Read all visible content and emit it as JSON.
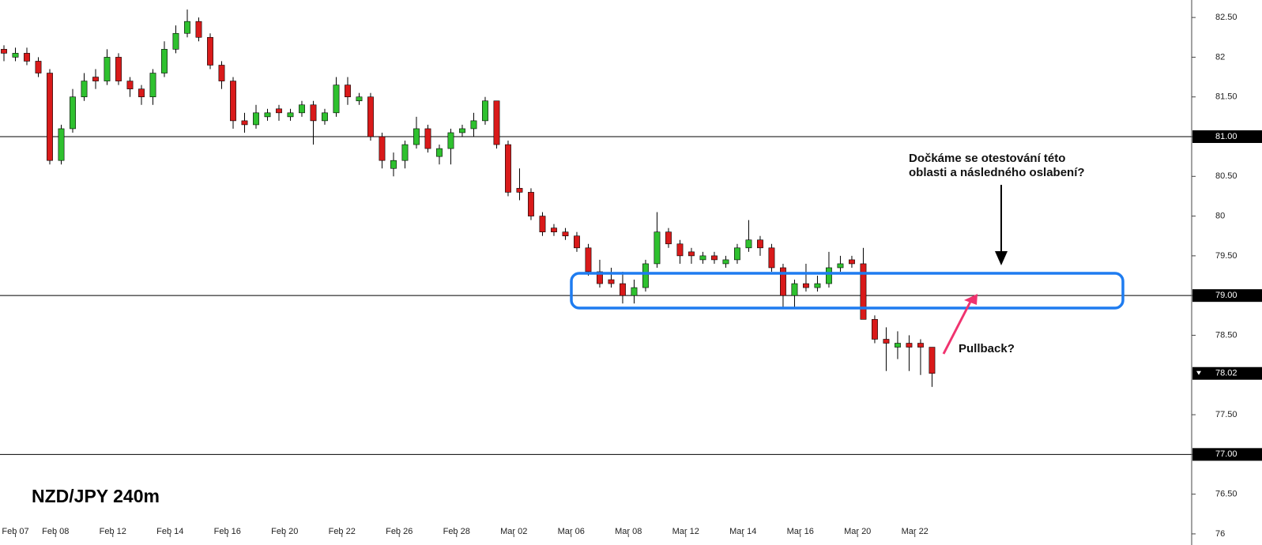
{
  "chart_data": {
    "type": "candlestick",
    "title": "NZD/JPY 240m",
    "annotations": [
      "Dočkáme se otestování této",
      "oblasti a následného oslabení?",
      "Pullback?"
    ],
    "x": [
      0,
      1,
      2,
      3,
      4,
      5,
      6,
      7,
      8,
      9,
      10,
      11,
      12,
      13,
      14,
      15,
      16,
      17,
      18,
      19,
      20,
      21,
      22,
      23,
      24,
      25,
      26,
      27,
      28,
      29,
      30,
      31,
      32,
      33,
      34,
      35,
      36,
      37,
      38,
      39,
      40,
      41,
      42,
      43,
      44,
      45,
      46,
      47,
      48,
      49,
      50,
      51,
      52,
      53,
      54,
      55,
      56,
      57,
      58,
      59,
      60,
      61,
      62,
      63,
      64,
      65,
      66,
      67,
      68,
      69,
      70,
      71,
      72,
      73,
      74,
      75,
      76,
      77,
      78,
      79,
      80,
      81
    ],
    "open": [
      82.1,
      82.0,
      82.05,
      81.95,
      81.8,
      80.7,
      81.1,
      81.5,
      81.75,
      81.7,
      82.0,
      81.7,
      81.6,
      81.5,
      81.8,
      82.1,
      82.3,
      82.45,
      82.25,
      81.9,
      81.7,
      81.2,
      81.15,
      81.25,
      81.35,
      81.25,
      81.3,
      81.4,
      81.2,
      81.3,
      81.65,
      81.45,
      81.5,
      81.0,
      80.6,
      80.7,
      80.9,
      81.1,
      80.75,
      80.85,
      81.05,
      81.1,
      81.2,
      81.45,
      80.9,
      80.35,
      80.3,
      80.0,
      79.85,
      79.8,
      79.75,
      79.6,
      79.3,
      79.2,
      79.15,
      79.0,
      79.1,
      79.4,
      79.8,
      79.65,
      79.55,
      79.45,
      79.5,
      79.4,
      79.45,
      79.6,
      79.7,
      79.6,
      79.35,
      79.0,
      79.15,
      79.1,
      79.15,
      79.35,
      79.45,
      79.4,
      78.7,
      78.45,
      78.35,
      78.4,
      78.4,
      78.35
    ],
    "high": [
      82.15,
      82.12,
      82.12,
      82.0,
      81.85,
      81.15,
      81.6,
      81.8,
      81.85,
      82.1,
      82.05,
      81.75,
      81.65,
      81.85,
      82.2,
      82.4,
      82.6,
      82.5,
      82.3,
      81.95,
      81.75,
      81.3,
      81.4,
      81.35,
      81.4,
      81.35,
      81.45,
      81.45,
      81.35,
      81.75,
      81.75,
      81.55,
      81.55,
      81.05,
      80.8,
      80.95,
      81.25,
      81.15,
      80.9,
      81.1,
      81.15,
      81.3,
      81.5,
      81.45,
      80.95,
      80.6,
      80.35,
      80.05,
      79.9,
      79.85,
      79.8,
      79.65,
      79.45,
      79.35,
      79.3,
      79.2,
      79.45,
      80.05,
      79.85,
      79.7,
      79.6,
      79.55,
      79.55,
      79.5,
      79.65,
      79.95,
      79.75,
      79.65,
      79.4,
      79.2,
      79.4,
      79.25,
      79.55,
      79.5,
      79.5,
      79.6,
      78.75,
      78.6,
      78.55,
      78.5,
      78.45,
      78.35
    ],
    "low": [
      81.95,
      81.95,
      81.9,
      81.75,
      80.65,
      80.65,
      81.05,
      81.45,
      81.6,
      81.65,
      81.65,
      81.5,
      81.4,
      81.4,
      81.75,
      82.05,
      82.25,
      82.2,
      81.85,
      81.6,
      81.1,
      81.05,
      81.1,
      81.2,
      81.2,
      81.2,
      81.25,
      80.9,
      81.15,
      81.25,
      81.4,
      81.4,
      80.95,
      80.6,
      80.5,
      80.6,
      80.85,
      80.8,
      80.65,
      80.65,
      81.0,
      81.0,
      81.15,
      80.85,
      80.25,
      80.2,
      79.95,
      79.75,
      79.75,
      79.7,
      79.55,
      79.25,
      79.1,
      79.1,
      78.9,
      78.9,
      79.05,
      79.35,
      79.6,
      79.4,
      79.4,
      79.4,
      79.4,
      79.35,
      79.4,
      79.55,
      79.5,
      79.3,
      78.85,
      78.85,
      79.05,
      79.05,
      79.1,
      79.3,
      79.35,
      78.7,
      78.4,
      78.05,
      78.2,
      78.05,
      78.0,
      77.85
    ],
    "close": [
      82.05,
      82.05,
      81.95,
      81.8,
      80.7,
      81.1,
      81.5,
      81.7,
      81.7,
      82.0,
      81.7,
      81.6,
      81.5,
      81.8,
      82.1,
      82.3,
      82.45,
      82.25,
      81.9,
      81.7,
      81.2,
      81.15,
      81.3,
      81.3,
      81.3,
      81.3,
      81.4,
      81.2,
      81.3,
      81.65,
      81.5,
      81.5,
      81.0,
      80.7,
      80.7,
      80.9,
      81.1,
      80.85,
      80.85,
      81.05,
      81.1,
      81.2,
      81.45,
      80.9,
      80.3,
      80.3,
      80.0,
      79.8,
      79.8,
      79.75,
      79.6,
      79.3,
      79.15,
      79.15,
      79.0,
      79.1,
      79.4,
      79.8,
      79.65,
      79.5,
      79.5,
      79.5,
      79.45,
      79.45,
      79.6,
      79.7,
      79.6,
      79.35,
      79.0,
      79.15,
      79.1,
      79.15,
      79.35,
      79.4,
      79.4,
      78.7,
      78.45,
      78.4,
      78.4,
      78.35,
      78.35,
      78.02
    ],
    "up_color": "#2fc12f",
    "down_color": "#d91a1a",
    "xlim": [
      -0.345,
      103.66
    ],
    "xticks": [
      {
        "value": 1,
        "label": "Feb 07"
      },
      {
        "value": 4.5,
        "label": "Feb 08"
      },
      {
        "value": 9.5,
        "label": "Feb 12"
      },
      {
        "value": 14.5,
        "label": "Feb 14"
      },
      {
        "value": 19.5,
        "label": "Feb 16"
      },
      {
        "value": 24.5,
        "label": "Feb 20"
      },
      {
        "value": 29.5,
        "label": "Feb 22"
      },
      {
        "value": 34.5,
        "label": "Feb 26"
      },
      {
        "value": 39.5,
        "label": "Feb 28"
      },
      {
        "value": 44.5,
        "label": "Mar 02"
      },
      {
        "value": 49.5,
        "label": "Mar 06"
      },
      {
        "value": 54.5,
        "label": "Mar 08"
      },
      {
        "value": 59.5,
        "label": "Mar 12"
      },
      {
        "value": 64.5,
        "label": "Mar 14"
      },
      {
        "value": 69.5,
        "label": "Mar 16"
      },
      {
        "value": 74.5,
        "label": "Mar 20"
      },
      {
        "value": 79.5,
        "label": "Mar 22"
      }
    ],
    "ylim": [
      75.86,
      82.72
    ],
    "yticks": [
      {
        "value": 82.5,
        "label": "82.50"
      },
      82,
      {
        "value": 81.5,
        "label": "81.50"
      },
      {
        "value": 81,
        "label": "81.00"
      },
      {
        "value": 80.5,
        "label": "80.50"
      },
      80,
      {
        "value": 79.5,
        "label": "79.50"
      },
      {
        "value": 79,
        "label": "79.00"
      },
      {
        "value": 78.5,
        "label": "78.50"
      },
      {
        "value": 77.5,
        "label": "77.50"
      },
      {
        "value": 77,
        "label": "77.00"
      },
      {
        "value": 76.5,
        "label": "76.50"
      },
      76
    ],
    "hlines": [
      81,
      79,
      77
    ],
    "last_price": {
      "value": 78.02,
      "label": "78.02"
    }
  }
}
